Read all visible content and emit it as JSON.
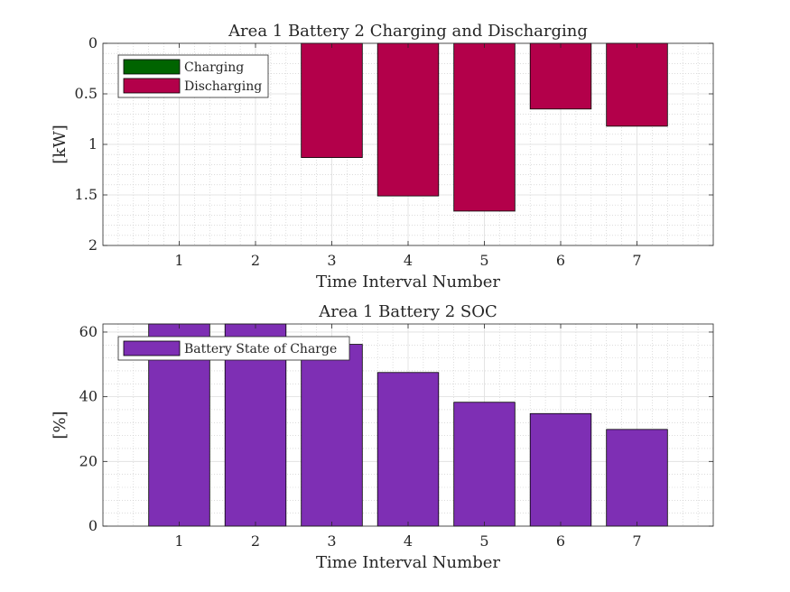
{
  "chart_data": [
    {
      "type": "bar",
      "title": "Area 1 Battery 2 Charging and Discharging",
      "xlabel": "Time Interval Number",
      "ylabel": "[kW]",
      "categories": [
        "1",
        "2",
        "3",
        "4",
        "5",
        "6",
        "7"
      ],
      "xlim": [
        0,
        8
      ],
      "ylim": [
        0,
        2
      ],
      "y_reversed": true,
      "yticks": [
        "0",
        "0.5",
        "1",
        "1.5",
        "2"
      ],
      "grid": true,
      "legend_position": "top-left",
      "series": [
        {
          "name": "Charging",
          "color": "#006400",
          "values": [
            0,
            0,
            0,
            0,
            0,
            0,
            0
          ]
        },
        {
          "name": "Discharging",
          "color": "#b3004a",
          "values": [
            0,
            0,
            1.13,
            1.51,
            1.66,
            0.65,
            0.82
          ]
        }
      ]
    },
    {
      "type": "bar",
      "title": "Area 1 Battery 2 SOC",
      "xlabel": "Time Interval Number",
      "ylabel": "[%]",
      "categories": [
        "1",
        "2",
        "3",
        "4",
        "5",
        "6",
        "7"
      ],
      "xlim": [
        0,
        8
      ],
      "ylim": [
        0,
        62.5
      ],
      "yticks": [
        "0",
        "20",
        "40",
        "60"
      ],
      "grid": true,
      "legend_position": "top-left",
      "series": [
        {
          "name": "Battery State of Charge",
          "color": "#7e2fb4",
          "values": [
            62.5,
            62.5,
            56.2,
            47.5,
            38.3,
            34.8,
            29.9
          ]
        }
      ]
    }
  ]
}
